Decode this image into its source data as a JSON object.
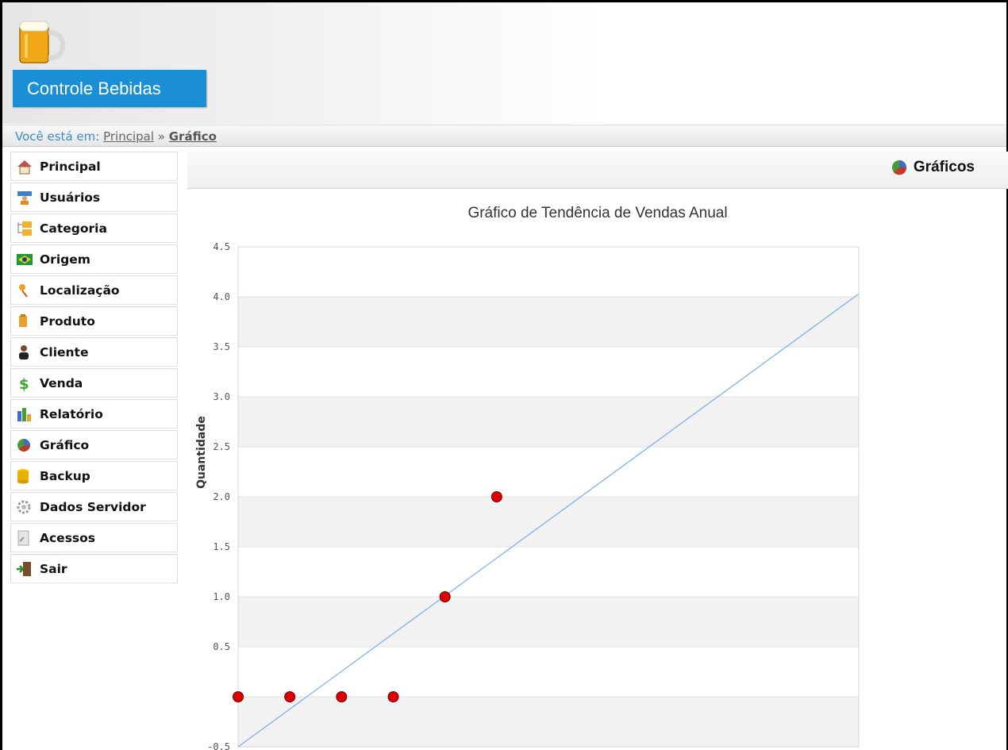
{
  "app": {
    "title": "Controle Bebidas",
    "logo": "beer-mug-icon"
  },
  "breadcrumb": {
    "prefix": "Você está em:",
    "link": "Principal",
    "separator": "»",
    "current": "Gráfico"
  },
  "sidebar": {
    "items": [
      {
        "label": "Principal",
        "icon": "home-icon"
      },
      {
        "label": "Usuários",
        "icon": "users-icon"
      },
      {
        "label": "Categoria",
        "icon": "folders-icon"
      },
      {
        "label": "Origem",
        "icon": "brazil-flag-icon"
      },
      {
        "label": "Localização",
        "icon": "pin-icon"
      },
      {
        "label": "Produto",
        "icon": "product-icon"
      },
      {
        "label": "Cliente",
        "icon": "client-icon"
      },
      {
        "label": "Venda",
        "icon": "dollar-icon"
      },
      {
        "label": "Relatório",
        "icon": "bar-chart-icon"
      },
      {
        "label": "Gráfico",
        "icon": "pie-chart-icon"
      },
      {
        "label": "Backup",
        "icon": "database-icon"
      },
      {
        "label": "Dados Servidor",
        "icon": "gear-icon"
      },
      {
        "label": "Acessos",
        "icon": "document-icon"
      },
      {
        "label": "Sair",
        "icon": "exit-icon"
      }
    ]
  },
  "content": {
    "title": "Gráficos"
  },
  "chart_data": {
    "type": "scatter",
    "title": "Gráfico de Tendência de Vendas Anual",
    "xlabel": "",
    "ylabel": "Quantidade",
    "ylim": [
      -0.5,
      4.5
    ],
    "yticks": [
      "4.5",
      "4.0",
      "3.5",
      "3.0",
      "2.5",
      "2.0",
      "1.5",
      "1.0",
      "0.5",
      "-0.5"
    ],
    "grid": true,
    "points": [
      {
        "x": 1,
        "y": 0
      },
      {
        "x": 2,
        "y": 0
      },
      {
        "x": 3,
        "y": 0
      },
      {
        "x": 4,
        "y": 0
      },
      {
        "x": 5,
        "y": 1
      },
      {
        "x": 6,
        "y": 2
      }
    ],
    "trendline": {
      "x": [
        1,
        13
      ],
      "y": [
        -0.5,
        4.03
      ]
    },
    "colors": {
      "point": "#dd0000",
      "trend": "#7fb2e5",
      "band": "#f2f2f2"
    }
  }
}
